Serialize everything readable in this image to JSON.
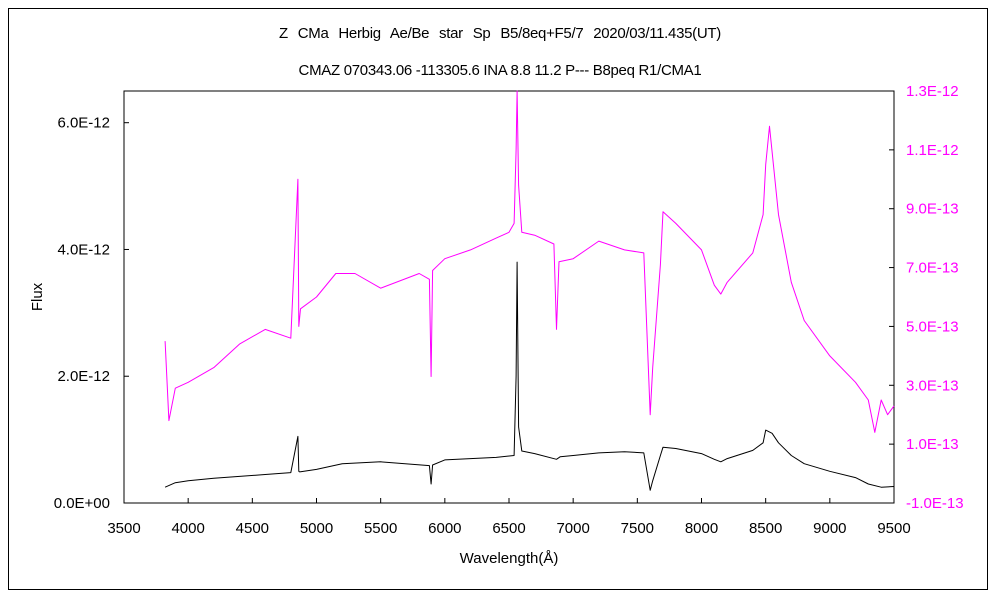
{
  "chart_data": {
    "type": "line",
    "title": "Z CMa  Herbig Ae/Be star  Sp B5/8eq+F5/7  2020/03/11.435(UT)",
    "subtitle": "CMAZ 070343.06 -113305.6 INA 8.8 11.2 P--- B8peq R1/CMA1",
    "xlabel": "Wavelength(Å)",
    "ylabel": "Flux",
    "xlim": [
      3500,
      9500
    ],
    "x_ticks": [
      3500,
      4000,
      4500,
      5000,
      5500,
      6000,
      6500,
      7000,
      7500,
      8000,
      8500,
      9000,
      9500
    ],
    "ylim_left": [
      0,
      6.5e-12
    ],
    "ylim_right": [
      -1e-13,
      1.3e-12
    ],
    "y_ticks_left": [
      "0.0E+00",
      "2.0E-12",
      "4.0E-12",
      "6.0E-12"
    ],
    "y_ticks_left_values": [
      0,
      2e-12,
      4e-12,
      6e-12
    ],
    "y_ticks_right": [
      "1.3E-12",
      "1.1E-12",
      "9.0E-13",
      "7.0E-13",
      "5.0E-13",
      "3.0E-13",
      "1.0E-13",
      "-1.0E-13"
    ],
    "y_ticks_right_values": [
      1.3e-12,
      1.1e-12,
      9e-13,
      7e-13,
      5e-13,
      3e-13,
      1e-13,
      -1e-13
    ],
    "grid": false,
    "series": [
      {
        "axis": "left",
        "color": "#000000",
        "x": [
          3820,
          3900,
          4000,
          4200,
          4400,
          4600,
          4800,
          4855,
          4862,
          4870,
          5000,
          5200,
          5500,
          5880,
          5893,
          5905,
          6000,
          6200,
          6400,
          6540,
          6555,
          6563,
          6575,
          6600,
          6700,
          6870,
          6900,
          7000,
          7200,
          7400,
          7550,
          7600,
          7620,
          7680,
          7700,
          7800,
          8000,
          8100,
          8150,
          8200,
          8400,
          8480,
          8500,
          8550,
          8600,
          8700,
          8800,
          9000,
          9200,
          9300,
          9400,
          9500
        ],
        "values": [
          2.5e-13,
          3.2e-13,
          3.5e-13,
          3.9e-13,
          4.2e-13,
          4.5e-13,
          4.8e-13,
          1.05e-12,
          5e-13,
          4.9e-13,
          5.3e-13,
          6.2e-13,
          6.5e-13,
          5.9e-13,
          3e-13,
          6e-13,
          6.8e-13,
          7e-13,
          7.2e-13,
          7.5e-13,
          2e-12,
          3.8e-12,
          1.2e-12,
          8.2e-13,
          7.8e-13,
          6.9e-13,
          7.3e-13,
          7.5e-13,
          7.9e-13,
          8.1e-13,
          7.9e-13,
          2e-13,
          3.5e-13,
          7.5e-13,
          8.8e-13,
          8.6e-13,
          7.8e-13,
          6.9e-13,
          6.5e-13,
          7e-13,
          8.3e-13,
          9.5e-13,
          1.15e-12,
          1.1e-12,
          9.5e-13,
          7.5e-13,
          6.2e-13,
          5e-13,
          4e-13,
          3e-13,
          2.5e-13,
          2.6e-13
        ]
      },
      {
        "axis": "right",
        "color": "#ff00ff",
        "x": [
          3820,
          3850,
          3900,
          4000,
          4200,
          4400,
          4600,
          4800,
          4855,
          4862,
          4875,
          5000,
          5150,
          5300,
          5500,
          5800,
          5880,
          5893,
          5905,
          6000,
          6200,
          6400,
          6500,
          6540,
          6555,
          6563,
          6575,
          6600,
          6700,
          6850,
          6870,
          6890,
          7000,
          7200,
          7400,
          7550,
          7600,
          7620,
          7680,
          7700,
          7800,
          8000,
          8100,
          8150,
          8200,
          8400,
          8480,
          8500,
          8530,
          8560,
          8600,
          8700,
          8800,
          9000,
          9200,
          9300,
          9350,
          9400,
          9450,
          9500
        ],
        "values": [
          4.5e-13,
          1.8e-13,
          2.9e-13,
          3.1e-13,
          3.6e-13,
          4.4e-13,
          4.9e-13,
          4.6e-13,
          1e-12,
          5e-13,
          5.6e-13,
          6e-13,
          6.8e-13,
          6.8e-13,
          6.3e-13,
          6.8e-13,
          6.6e-13,
          3.3e-13,
          6.9e-13,
          7.3e-13,
          7.6e-13,
          8e-13,
          8.2e-13,
          8.5e-13,
          1.1e-12,
          1.3e-12,
          9.8e-13,
          8.2e-13,
          8.1e-13,
          7.8e-13,
          4.9e-13,
          7.2e-13,
          7.3e-13,
          7.9e-13,
          7.6e-13,
          7.5e-13,
          2e-13,
          3.6e-13,
          7.1e-13,
          8.9e-13,
          8.5e-13,
          7.6e-13,
          6.4e-13,
          6.1e-13,
          6.5e-13,
          7.5e-13,
          8.8e-13,
          1.05e-12,
          1.18e-12,
          1.05e-12,
          8.8e-13,
          6.5e-13,
          5.2e-13,
          4e-13,
          3.1e-13,
          2.5e-13,
          1.4e-13,
          2.5e-13,
          2e-13,
          2.3e-13
        ]
      }
    ]
  }
}
